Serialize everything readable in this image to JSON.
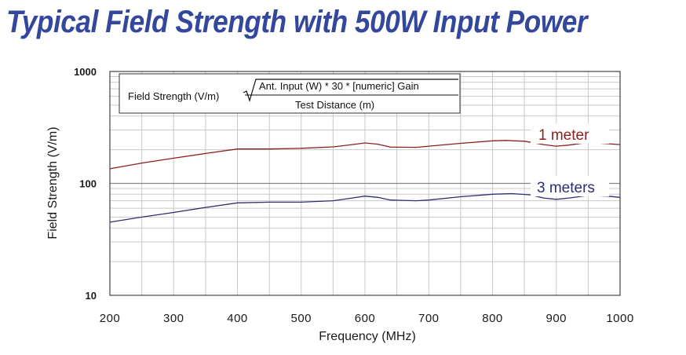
{
  "chart_data": {
    "type": "line",
    "title": "Typical Field Strength with 500W Input Power",
    "xlabel": "Frequency (MHz)",
    "ylabel": "Field Strength (V/m)",
    "xlim": [
      200,
      1000
    ],
    "ylim": [
      10,
      1000
    ],
    "yscale": "log",
    "xticks": [
      "200",
      "300",
      "400",
      "500",
      "600",
      "700",
      "800",
      "900",
      "1000"
    ],
    "yticks": [
      "10",
      "100",
      "1000"
    ],
    "grid": true,
    "annotation": {
      "lhs": "Field Strength (V/m)",
      "numerator": "Ant. Input (W) * 30 * [numeric] Gain",
      "denominator": "Test Distance (m)"
    },
    "series": [
      {
        "name": "1 meter",
        "color": "#8b2020",
        "x": [
          200,
          250,
          300,
          350,
          400,
          450,
          500,
          550,
          580,
          600,
          620,
          640,
          680,
          700,
          750,
          800,
          820,
          850,
          880,
          900,
          920,
          950,
          980,
          1000
        ],
        "y": [
          135,
          152,
          168,
          185,
          203,
          203,
          206,
          212,
          222,
          230,
          224,
          211,
          210,
          215,
          228,
          240,
          242,
          238,
          222,
          215,
          220,
          232,
          226,
          222
        ]
      },
      {
        "name": "3 meters",
        "color": "#2e2e70",
        "x": [
          200,
          250,
          300,
          350,
          400,
          450,
          500,
          550,
          580,
          600,
          620,
          640,
          680,
          700,
          750,
          800,
          830,
          860,
          880,
          900,
          920,
          950,
          980,
          1000
        ],
        "y": [
          45,
          50,
          55,
          61,
          67,
          68,
          68,
          70,
          74,
          77,
          75,
          71,
          70,
          71,
          76,
          80,
          81,
          79,
          74,
          72,
          74,
          78,
          77,
          75
        ]
      }
    ]
  }
}
